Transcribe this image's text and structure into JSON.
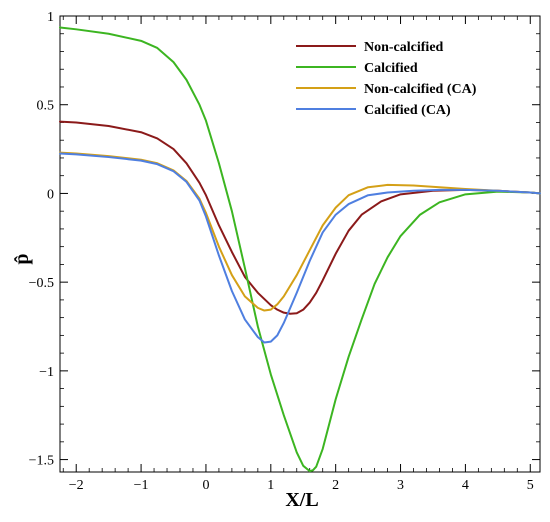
{
  "chart_data": {
    "type": "line",
    "xlabel": "X/L",
    "ylabel": "p̂",
    "xlim": [
      -2.25,
      5.15
    ],
    "ylim": [
      -1.57,
      1.0
    ],
    "x_ticks": [
      -2,
      -1,
      0,
      1,
      2,
      3,
      4,
      5
    ],
    "x_tick_labels": [
      "−2",
      "−1",
      "0",
      "1",
      "2",
      "3",
      "4",
      "5"
    ],
    "y_ticks": [
      1,
      0.5,
      0,
      -0.5,
      -1,
      -1.5
    ],
    "y_tick_labels": [
      "1",
      "0.5",
      "0",
      "−0.5",
      "−1",
      "−1.5"
    ],
    "grid": false,
    "legend": "top-right",
    "series": [
      {
        "name": "Non-calcified",
        "color": "#8b1a1a",
        "x": [
          -2.25,
          -2.0,
          -1.5,
          -1.0,
          -0.75,
          -0.5,
          -0.3,
          -0.1,
          0.0,
          0.2,
          0.4,
          0.6,
          0.8,
          1.0,
          1.1,
          1.2,
          1.3,
          1.4,
          1.5,
          1.6,
          1.7,
          1.8,
          2.0,
          2.2,
          2.4,
          2.7,
          3.0,
          3.5,
          4.0,
          4.5,
          5.0,
          5.15
        ],
        "y": [
          0.405,
          0.4,
          0.38,
          0.345,
          0.31,
          0.25,
          0.17,
          0.06,
          -0.01,
          -0.18,
          -0.33,
          -0.47,
          -0.56,
          -0.63,
          -0.655,
          -0.672,
          -0.678,
          -0.675,
          -0.655,
          -0.615,
          -0.56,
          -0.49,
          -0.34,
          -0.21,
          -0.12,
          -0.045,
          -0.005,
          0.015,
          0.02,
          0.015,
          0.005,
          0.0
        ]
      },
      {
        "name": "Calcified",
        "color": "#3cb521",
        "x": [
          -2.25,
          -2.0,
          -1.5,
          -1.0,
          -0.75,
          -0.5,
          -0.3,
          -0.1,
          0.0,
          0.2,
          0.4,
          0.6,
          0.8,
          1.0,
          1.2,
          1.4,
          1.5,
          1.6,
          1.65,
          1.7,
          1.8,
          1.9,
          2.0,
          2.2,
          2.4,
          2.6,
          2.8,
          3.0,
          3.3,
          3.6,
          4.0,
          4.5,
          5.0,
          5.15
        ],
        "y": [
          0.935,
          0.925,
          0.9,
          0.86,
          0.82,
          0.74,
          0.64,
          0.5,
          0.41,
          0.17,
          -0.1,
          -0.42,
          -0.75,
          -1.02,
          -1.25,
          -1.46,
          -1.535,
          -1.565,
          -1.56,
          -1.54,
          -1.44,
          -1.3,
          -1.16,
          -0.92,
          -0.71,
          -0.51,
          -0.36,
          -0.24,
          -0.12,
          -0.05,
          -0.005,
          0.01,
          0.005,
          0.0
        ]
      },
      {
        "name": "Non-calcified (CA)",
        "color": "#d4a017",
        "x": [
          -2.25,
          -2.0,
          -1.5,
          -1.0,
          -0.75,
          -0.5,
          -0.3,
          -0.1,
          0.0,
          0.2,
          0.4,
          0.6,
          0.8,
          0.9,
          1.0,
          1.1,
          1.2,
          1.4,
          1.6,
          1.8,
          2.0,
          2.2,
          2.5,
          2.8,
          3.2,
          3.6,
          4.0,
          4.5,
          5.0,
          5.15
        ],
        "y": [
          0.23,
          0.225,
          0.21,
          0.19,
          0.17,
          0.13,
          0.07,
          -0.03,
          -0.11,
          -0.3,
          -0.46,
          -0.58,
          -0.645,
          -0.66,
          -0.655,
          -0.625,
          -0.58,
          -0.46,
          -0.32,
          -0.18,
          -0.08,
          -0.01,
          0.035,
          0.048,
          0.045,
          0.035,
          0.025,
          0.015,
          0.005,
          0.0
        ]
      },
      {
        "name": "Calcified (CA)",
        "color": "#4f7fe0",
        "x": [
          -2.25,
          -2.0,
          -1.5,
          -1.0,
          -0.75,
          -0.5,
          -0.3,
          -0.1,
          0.0,
          0.2,
          0.4,
          0.6,
          0.8,
          0.9,
          1.0,
          1.1,
          1.2,
          1.4,
          1.6,
          1.8,
          2.0,
          2.2,
          2.5,
          2.8,
          3.2,
          3.6,
          4.0,
          4.5,
          5.0,
          5.15
        ],
        "y": [
          0.225,
          0.22,
          0.205,
          0.185,
          0.165,
          0.125,
          0.065,
          -0.04,
          -0.13,
          -0.35,
          -0.55,
          -0.71,
          -0.81,
          -0.84,
          -0.835,
          -0.8,
          -0.73,
          -0.56,
          -0.38,
          -0.22,
          -0.12,
          -0.06,
          -0.01,
          0.005,
          0.015,
          0.02,
          0.02,
          0.015,
          0.005,
          0.0
        ]
      }
    ]
  }
}
